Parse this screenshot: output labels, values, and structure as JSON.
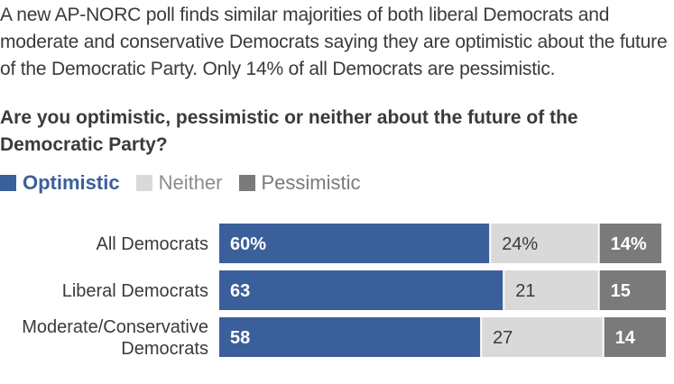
{
  "intro_text": "A new AP-NORC poll finds similar majorities of both liberal Democrats and moderate and conservative Democrats saying they are optimistic about the future of the Democratic Party. Only 14% of all Democrats are pessimistic.",
  "question_text": "Are you optimistic, pessimistic or neither about the future of the Democratic Party?",
  "chart_data": {
    "type": "bar",
    "orientation": "horizontal",
    "stacked": true,
    "categories": [
      "All Democrats",
      "Liberal Democrats",
      "Moderate/Conservative Democrats"
    ],
    "category_lines": [
      [
        "All Democrats"
      ],
      [
        "Liberal Democrats"
      ],
      [
        "Moderate/Conservative",
        "Democrats"
      ]
    ],
    "series": [
      {
        "name": "Optimistic",
        "values": [
          60,
          63,
          58
        ],
        "labels": [
          "60%",
          "63",
          "58"
        ],
        "color": "#3b5f9a",
        "text_color": "#ffffff",
        "bold": true
      },
      {
        "name": "Neither",
        "values": [
          24,
          21,
          27
        ],
        "labels": [
          "24%",
          "21",
          "27"
        ],
        "color": "#d9d9d9",
        "text_color": "#3a3a3a",
        "bold": false
      },
      {
        "name": "Pessimistic",
        "values": [
          14,
          15,
          14
        ],
        "labels": [
          "14%",
          "15",
          "14"
        ],
        "color": "#7a7a7a",
        "text_color": "#ffffff",
        "bold": true
      }
    ],
    "xlim": [
      0,
      100
    ],
    "legend_position": "top-left",
    "grid": false
  }
}
